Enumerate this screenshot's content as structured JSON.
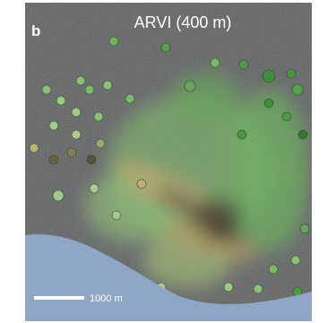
{
  "panel_label": "b",
  "title": "ARVI (400 m)",
  "scale_bar": {
    "label": "1000 m"
  }
}
